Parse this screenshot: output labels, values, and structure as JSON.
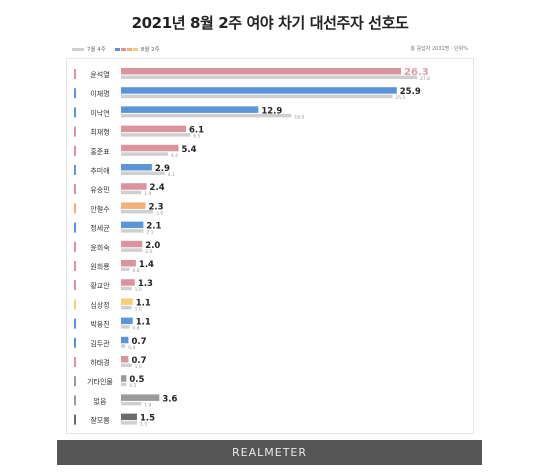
{
  "title": "2021년 8월 2주 여야 차기 대선주자 선호도",
  "legend": {
    "prev_label": "7월 4주",
    "curr_label": "8월 2주"
  },
  "note": "총 응답자 2031명 · 단위%",
  "footer": "REALMETER",
  "colors": {
    "prev_bar": "#cfcfcf",
    "pink": "#d9949f",
    "blue": "#5b95d8",
    "orange": "#f2b07b",
    "yellow": "#f0d27a",
    "gray": "#9a9a9a",
    "darkgray": "#6b6b6b",
    "top_value": "#d9a0a8"
  },
  "chart_data": {
    "type": "bar",
    "orientation": "horizontal",
    "categories": [
      "윤석열",
      "이재명",
      "이낙연",
      "최재형",
      "홍준표",
      "추미애",
      "유승민",
      "안철수",
      "정세균",
      "윤희숙",
      "원희룡",
      "황교안",
      "심상정",
      "박용진",
      "김두관",
      "하태경",
      "기타인물",
      "없음",
      "잘모름"
    ],
    "series": [
      {
        "name": "8월 2주",
        "values": [
          26.3,
          25.9,
          12.9,
          6.1,
          5.4,
          2.9,
          2.4,
          2.3,
          2.1,
          2.0,
          1.4,
          1.3,
          1.1,
          1.1,
          0.7,
          0.7,
          0.5,
          3.6,
          1.5
        ]
      },
      {
        "name": "7월 4주",
        "values": [
          27.8,
          25.5,
          16.0,
          6.5,
          4.4,
          4.1,
          1.9,
          3.0,
          2.1,
          2.0,
          0.8,
          1.0,
          1.0,
          0.8,
          0.4,
          1.0,
          0.5,
          1.9,
          1.5
        ]
      }
    ],
    "colors": [
      "pink",
      "blue",
      "blue",
      "pink",
      "pink",
      "blue",
      "pink",
      "orange",
      "blue",
      "pink",
      "pink",
      "pink",
      "yellow",
      "blue",
      "blue",
      "pink",
      "gray",
      "gray",
      "darkgray"
    ],
    "xlim": [
      0,
      27.8
    ],
    "legend_position": "top-left"
  }
}
